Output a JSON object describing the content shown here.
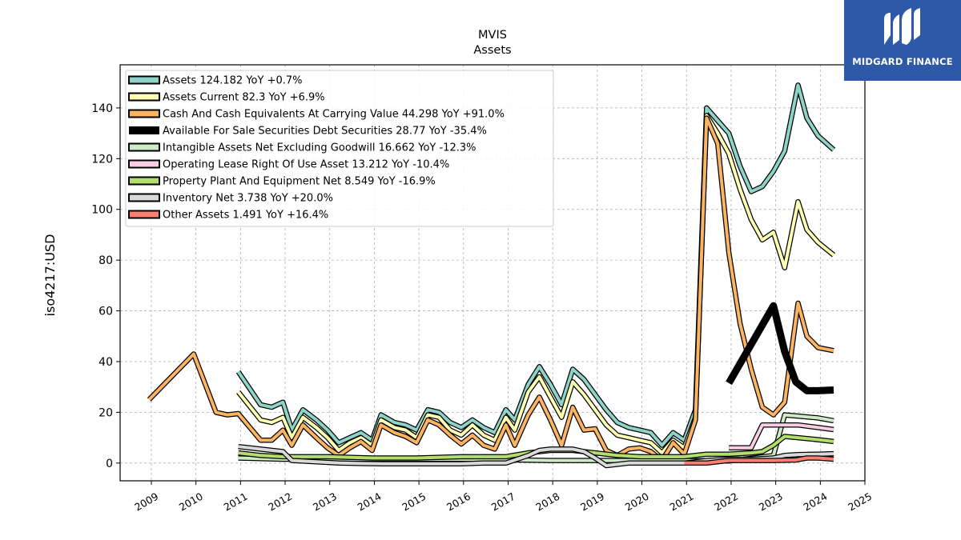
{
  "logo": {
    "text": "MIDGARD FINANCE",
    "bg_color": "#2e59a8",
    "icon": "midgard-m-logo-icon"
  },
  "chart_data": {
    "type": "line",
    "title": "MVIS",
    "subtitle": "Assets",
    "ylabel": "iso4217:USD",
    "xlabel": "",
    "xlim": [
      2008.3,
      2025.0
    ],
    "ylim": [
      -7,
      157
    ],
    "yticks": [
      0,
      20,
      40,
      60,
      80,
      100,
      120,
      140
    ],
    "xticks": [
      2009,
      2010,
      2011,
      2012,
      2013,
      2014,
      2015,
      2016,
      2017,
      2018,
      2019,
      2020,
      2021,
      2022,
      2023,
      2024,
      2025
    ],
    "grid": true,
    "legend_position": "top-left",
    "series": [
      {
        "name": "Assets",
        "legend": "Assets  124.182 YoY +0.7%",
        "color": "#8dd3c7",
        "width": 4,
        "points": [
          [
            2010.95,
            36
          ],
          [
            2011.45,
            23
          ],
          [
            2011.7,
            22
          ],
          [
            2011.95,
            24
          ],
          [
            2012.15,
            13
          ],
          [
            2012.4,
            21
          ],
          [
            2012.7,
            17
          ],
          [
            2012.95,
            13
          ],
          [
            2013.2,
            8
          ],
          [
            2013.45,
            10
          ],
          [
            2013.7,
            12
          ],
          [
            2013.95,
            9
          ],
          [
            2014.15,
            19
          ],
          [
            2014.45,
            16
          ],
          [
            2014.7,
            15
          ],
          [
            2014.95,
            13
          ],
          [
            2015.2,
            21
          ],
          [
            2015.45,
            20
          ],
          [
            2015.7,
            16
          ],
          [
            2015.95,
            14
          ],
          [
            2016.2,
            17
          ],
          [
            2016.45,
            14
          ],
          [
            2016.7,
            12
          ],
          [
            2016.95,
            21
          ],
          [
            2017.15,
            17
          ],
          [
            2017.45,
            31
          ],
          [
            2017.7,
            38
          ],
          [
            2017.95,
            31
          ],
          [
            2018.2,
            23
          ],
          [
            2018.45,
            37
          ],
          [
            2018.7,
            33
          ],
          [
            2018.95,
            27
          ],
          [
            2019.2,
            21
          ],
          [
            2019.45,
            16
          ],
          [
            2019.7,
            14
          ],
          [
            2019.95,
            13
          ],
          [
            2020.2,
            12
          ],
          [
            2020.45,
            7
          ],
          [
            2020.7,
            12
          ],
          [
            2020.95,
            9
          ],
          [
            2021.2,
            21
          ],
          [
            2021.45,
            140
          ],
          [
            2021.7,
            135
          ],
          [
            2021.95,
            130
          ],
          [
            2022.2,
            117
          ],
          [
            2022.45,
            107
          ],
          [
            2022.7,
            109
          ],
          [
            2022.95,
            115
          ],
          [
            2023.2,
            123
          ],
          [
            2023.5,
            149
          ],
          [
            2023.7,
            136
          ],
          [
            2023.95,
            129
          ],
          [
            2024.3,
            123.5
          ]
        ]
      },
      {
        "name": "Assets Current",
        "legend": "Assets Current  82.3 YoY +6.9%",
        "color": "#ffffb3",
        "width": 4,
        "points": [
          [
            2010.95,
            28
          ],
          [
            2011.45,
            17
          ],
          [
            2011.7,
            16
          ],
          [
            2011.95,
            18
          ],
          [
            2012.15,
            10
          ],
          [
            2012.4,
            18
          ],
          [
            2012.7,
            14
          ],
          [
            2012.95,
            10
          ],
          [
            2013.2,
            5
          ],
          [
            2013.45,
            8
          ],
          [
            2013.7,
            10
          ],
          [
            2013.95,
            7
          ],
          [
            2014.15,
            17
          ],
          [
            2014.45,
            14
          ],
          [
            2014.7,
            13
          ],
          [
            2014.95,
            10
          ],
          [
            2015.2,
            19
          ],
          [
            2015.45,
            18
          ],
          [
            2015.7,
            13
          ],
          [
            2015.95,
            11
          ],
          [
            2016.2,
            15
          ],
          [
            2016.45,
            11
          ],
          [
            2016.7,
            9
          ],
          [
            2016.95,
            18
          ],
          [
            2017.15,
            13
          ],
          [
            2017.45,
            28
          ],
          [
            2017.7,
            34
          ],
          [
            2017.95,
            26
          ],
          [
            2018.2,
            18
          ],
          [
            2018.45,
            32
          ],
          [
            2018.7,
            27
          ],
          [
            2018.95,
            21
          ],
          [
            2019.2,
            15
          ],
          [
            2019.45,
            11
          ],
          [
            2019.7,
            10
          ],
          [
            2019.95,
            9
          ],
          [
            2020.2,
            8
          ],
          [
            2020.45,
            4
          ],
          [
            2020.7,
            9
          ],
          [
            2020.95,
            6
          ],
          [
            2021.2,
            18
          ],
          [
            2021.45,
            137
          ],
          [
            2021.7,
            130
          ],
          [
            2021.95,
            122
          ],
          [
            2022.2,
            108
          ],
          [
            2022.45,
            96
          ],
          [
            2022.7,
            88
          ],
          [
            2022.95,
            91
          ],
          [
            2023.2,
            77
          ],
          [
            2023.5,
            103
          ],
          [
            2023.7,
            92
          ],
          [
            2023.95,
            87
          ],
          [
            2024.3,
            82
          ]
        ]
      },
      {
        "name": "Cash And Cash Equivalents At Carrying Value",
        "legend": "Cash And Cash Equivalents At Carrying Value  44.298 YoY +91.0%",
        "color": "#fdb462",
        "width": 4,
        "points": [
          [
            2008.95,
            25
          ],
          [
            2009.95,
            43
          ],
          [
            2010.45,
            20
          ],
          [
            2010.7,
            19
          ],
          [
            2010.95,
            19.5
          ],
          [
            2011.45,
            9
          ],
          [
            2011.7,
            9
          ],
          [
            2011.95,
            13
          ],
          [
            2012.15,
            7
          ],
          [
            2012.4,
            15
          ],
          [
            2012.7,
            10
          ],
          [
            2012.95,
            6
          ],
          [
            2013.2,
            3
          ],
          [
            2013.45,
            6
          ],
          [
            2013.7,
            8.5
          ],
          [
            2013.95,
            5
          ],
          [
            2014.15,
            15
          ],
          [
            2014.45,
            12
          ],
          [
            2014.7,
            10.5
          ],
          [
            2014.95,
            8
          ],
          [
            2015.2,
            17
          ],
          [
            2015.45,
            15
          ],
          [
            2015.7,
            11
          ],
          [
            2015.95,
            7.5
          ],
          [
            2016.2,
            11
          ],
          [
            2016.45,
            7
          ],
          [
            2016.7,
            5.5
          ],
          [
            2016.95,
            15
          ],
          [
            2017.15,
            7
          ],
          [
            2017.45,
            19
          ],
          [
            2017.7,
            26
          ],
          [
            2017.95,
            17
          ],
          [
            2018.2,
            7
          ],
          [
            2018.45,
            22
          ],
          [
            2018.7,
            13
          ],
          [
            2018.95,
            13.5
          ],
          [
            2019.2,
            5
          ],
          [
            2019.45,
            3
          ],
          [
            2019.7,
            5.5
          ],
          [
            2019.95,
            6
          ],
          [
            2020.2,
            4.5
          ],
          [
            2020.45,
            1
          ],
          [
            2020.7,
            8
          ],
          [
            2020.95,
            3.5
          ],
          [
            2021.2,
            17
          ],
          [
            2021.45,
            136
          ],
          [
            2021.7,
            126
          ],
          [
            2021.95,
            83
          ],
          [
            2022.2,
            55
          ],
          [
            2022.45,
            37
          ],
          [
            2022.7,
            22
          ],
          [
            2022.95,
            19
          ],
          [
            2023.2,
            24
          ],
          [
            2023.5,
            63
          ],
          [
            2023.7,
            50
          ],
          [
            2023.95,
            45.5
          ],
          [
            2024.3,
            44.3
          ]
        ]
      },
      {
        "name": "Available For Sale Securities Debt Securities",
        "legend": "Available For Sale Securities Debt Securities  28.77 YoY -35.4%",
        "color": "#000000",
        "width": 9,
        "outline": false,
        "points": [
          [
            2021.95,
            31.5
          ],
          [
            2022.95,
            62
          ],
          [
            2023.2,
            44
          ],
          [
            2023.45,
            32
          ],
          [
            2023.7,
            28.5
          ],
          [
            2023.95,
            28.5
          ],
          [
            2024.3,
            28.8
          ]
        ]
      },
      {
        "name": "Intangible Assets Net Excluding Goodwill",
        "legend": "Intangible Assets Net Excluding Goodwill  16.662 YoY -12.3%",
        "color": "#ccebc5",
        "width": 4,
        "points": [
          [
            2010.95,
            2
          ],
          [
            2011.95,
            1.5
          ],
          [
            2012.95,
            1.5
          ],
          [
            2013.95,
            1.5
          ],
          [
            2014.95,
            1.5
          ],
          [
            2015.95,
            1.5
          ],
          [
            2016.95,
            1.3
          ],
          [
            2017.95,
            1
          ],
          [
            2018.95,
            1
          ],
          [
            2019.95,
            1
          ],
          [
            2020.95,
            1
          ],
          [
            2021.95,
            0.8
          ],
          [
            2022.95,
            3
          ],
          [
            2023.2,
            19
          ],
          [
            2023.5,
            18.5
          ],
          [
            2023.95,
            17.8
          ],
          [
            2024.3,
            16.7
          ]
        ]
      },
      {
        "name": "Operating Lease Right Of Use Asset",
        "legend": "Operating Lease Right Of Use Asset  13.212 YoY -10.4%",
        "color": "#fccde5",
        "width": 4,
        "points": [
          [
            2021.95,
            6
          ],
          [
            2022.45,
            6
          ],
          [
            2022.7,
            15
          ],
          [
            2022.95,
            15
          ],
          [
            2023.5,
            15
          ],
          [
            2023.95,
            14
          ],
          [
            2024.3,
            13.2
          ]
        ]
      },
      {
        "name": "Property Plant And Equipment Net",
        "legend": "Property Plant And Equipment Net  8.549 YoY -16.9%",
        "color": "#b3de69",
        "width": 4,
        "points": [
          [
            2010.95,
            4
          ],
          [
            2011.45,
            3
          ],
          [
            2011.95,
            2.5
          ],
          [
            2012.95,
            2.5
          ],
          [
            2013.95,
            2
          ],
          [
            2014.95,
            2
          ],
          [
            2015.95,
            2.5
          ],
          [
            2016.95,
            2.5
          ],
          [
            2017.45,
            4
          ],
          [
            2017.95,
            5
          ],
          [
            2018.45,
            5
          ],
          [
            2018.95,
            4
          ],
          [
            2019.45,
            3
          ],
          [
            2019.95,
            2.5
          ],
          [
            2020.95,
            2.5
          ],
          [
            2021.45,
            3.5
          ],
          [
            2021.95,
            3.5
          ],
          [
            2022.45,
            4
          ],
          [
            2022.7,
            4.5
          ],
          [
            2022.95,
            7
          ],
          [
            2023.2,
            10.5
          ],
          [
            2023.5,
            10
          ],
          [
            2023.95,
            9.2
          ],
          [
            2024.3,
            8.5
          ]
        ]
      },
      {
        "name": "Inventory Net",
        "legend": "Inventory Net  3.738 YoY +20.0%",
        "color": "#d9d9d9",
        "width": 4,
        "points": [
          [
            2010.95,
            6.5
          ],
          [
            2011.45,
            5.5
          ],
          [
            2011.95,
            4.5
          ],
          [
            2012.15,
            1
          ],
          [
            2012.7,
            0.5
          ],
          [
            2013.2,
            0
          ],
          [
            2013.7,
            -0.2
          ],
          [
            2014.2,
            -0.3
          ],
          [
            2014.95,
            -0.3
          ],
          [
            2015.45,
            -0.3
          ],
          [
            2015.95,
            -0.3
          ],
          [
            2016.45,
            0
          ],
          [
            2016.95,
            0
          ],
          [
            2017.45,
            3
          ],
          [
            2017.7,
            5
          ],
          [
            2017.95,
            5.5
          ],
          [
            2018.45,
            5.5
          ],
          [
            2018.7,
            4.5
          ],
          [
            2018.95,
            2
          ],
          [
            2019.2,
            -1
          ],
          [
            2019.7,
            0
          ],
          [
            2019.95,
            0
          ],
          [
            2020.45,
            0
          ],
          [
            2020.95,
            0
          ],
          [
            2021.45,
            1
          ],
          [
            2021.95,
            1.5
          ],
          [
            2022.45,
            1.5
          ],
          [
            2022.95,
            2
          ],
          [
            2023.2,
            3
          ],
          [
            2023.5,
            3.3
          ],
          [
            2023.95,
            3.5
          ],
          [
            2024.3,
            3.7
          ]
        ]
      },
      {
        "name": "Other Assets",
        "legend": "Other Assets  1.491 YoY +16.4%",
        "color": "#fb8072",
        "width": 4,
        "points": [
          [
            2020.95,
            0
          ],
          [
            2021.45,
            0
          ],
          [
            2021.95,
            1
          ],
          [
            2022.45,
            1
          ],
          [
            2022.95,
            1
          ],
          [
            2023.45,
            1.2
          ],
          [
            2023.7,
            2
          ],
          [
            2023.95,
            2
          ],
          [
            2024.3,
            1.5
          ]
        ]
      }
    ]
  }
}
